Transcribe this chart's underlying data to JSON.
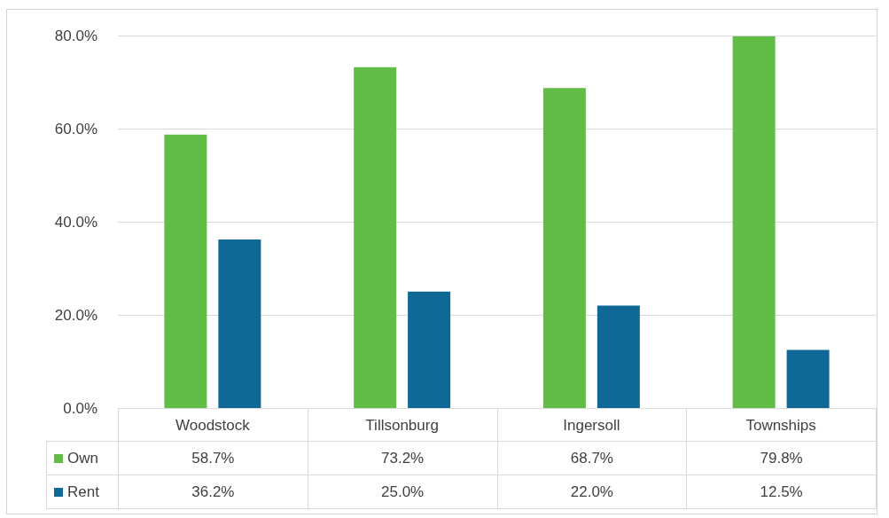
{
  "chart_data": {
    "type": "bar",
    "categories": [
      "Woodstock",
      "Tillsonburg",
      "Ingersoll",
      "Townships"
    ],
    "series": [
      {
        "name": "Own",
        "color": "#62bd46",
        "values": [
          58.7,
          73.2,
          68.7,
          79.8
        ],
        "value_labels": [
          "58.7%",
          "73.2%",
          "68.7%",
          "79.8%"
        ]
      },
      {
        "name": "Rent",
        "color": "#0f6895",
        "values": [
          36.2,
          25.0,
          22.0,
          12.5
        ],
        "value_labels": [
          "36.2%",
          "25.0%",
          "22.0%",
          "12.5%"
        ]
      }
    ],
    "ylim": [
      0,
      80
    ],
    "yticks": [
      {
        "value": 0,
        "label": "0.0%"
      },
      {
        "value": 20,
        "label": "20.0%"
      },
      {
        "value": 40,
        "label": "40.0%"
      },
      {
        "value": 60,
        "label": "60.0%"
      },
      {
        "value": 80,
        "label": "80.0%"
      }
    ],
    "grid": "y",
    "legend": "bottom"
  }
}
